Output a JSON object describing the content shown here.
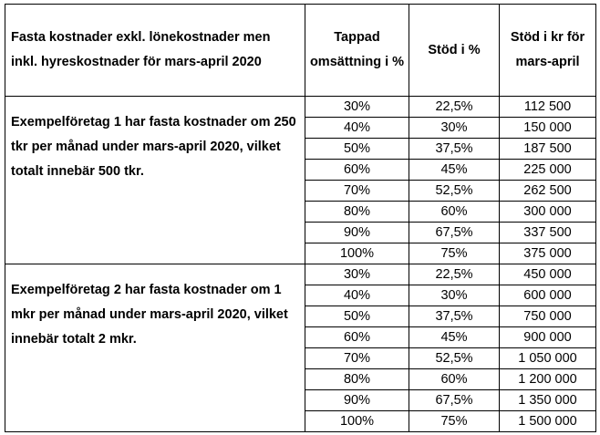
{
  "header": {
    "col0": "Fasta kostnader exkl. lönekostnader men inkl. hyreskostnader för mars-april 2020",
    "col1": "Tappad omsättning i %",
    "col2": "Stöd i %",
    "col3": "Stöd i kr för mars-april"
  },
  "groups": [
    {
      "description": "Exempelföretag 1 har fasta kostnader om 250 tkr per månad under mars-april 2020, vilket totalt innebär 500 tkr.",
      "rows": [
        {
          "lost": "30%",
          "support_pct": "22,5%",
          "support_kr": "112 500"
        },
        {
          "lost": "40%",
          "support_pct": "30%",
          "support_kr": "150 000"
        },
        {
          "lost": "50%",
          "support_pct": "37,5%",
          "support_kr": "187 500"
        },
        {
          "lost": "60%",
          "support_pct": "45%",
          "support_kr": "225 000"
        },
        {
          "lost": "70%",
          "support_pct": "52,5%",
          "support_kr": "262 500"
        },
        {
          "lost": "80%",
          "support_pct": "60%",
          "support_kr": "300 000"
        },
        {
          "lost": "90%",
          "support_pct": "67,5%",
          "support_kr": "337 500"
        },
        {
          "lost": "100%",
          "support_pct": "75%",
          "support_kr": "375 000"
        }
      ]
    },
    {
      "description": "Exempelföretag 2 har fasta kostnader om 1 mkr per månad under mars-april 2020, vilket innebär totalt 2 mkr.",
      "rows": [
        {
          "lost": "30%",
          "support_pct": "22,5%",
          "support_kr": "450 000"
        },
        {
          "lost": "40%",
          "support_pct": "30%",
          "support_kr": "600 000"
        },
        {
          "lost": "50%",
          "support_pct": "37,5%",
          "support_kr": "750 000"
        },
        {
          "lost": "60%",
          "support_pct": "45%",
          "support_kr": "900 000"
        },
        {
          "lost": "70%",
          "support_pct": "52,5%",
          "support_kr": "1 050 000"
        },
        {
          "lost": "80%",
          "support_pct": "60%",
          "support_kr": "1 200 000"
        },
        {
          "lost": "90%",
          "support_pct": "67,5%",
          "support_kr": "1 350 000"
        },
        {
          "lost": "100%",
          "support_pct": "75%",
          "support_kr": "1 500 000"
        }
      ]
    }
  ]
}
